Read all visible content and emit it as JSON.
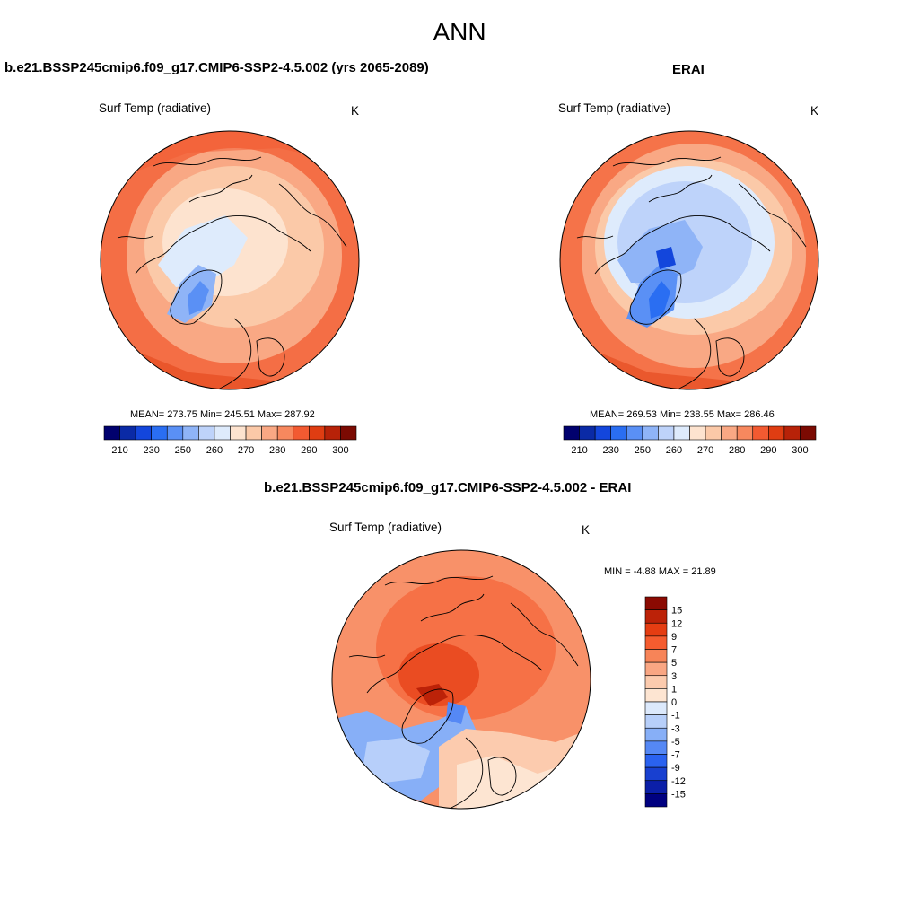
{
  "figure": {
    "title": "ANN"
  },
  "colors": {
    "abs_scale": [
      "#01016e",
      "#0a2aa6",
      "#1346dc",
      "#2a6ef2",
      "#5a90f5",
      "#8fb4f7",
      "#bed3fa",
      "#deebfc",
      "#fde3cf",
      "#fbc9a8",
      "#f9a884",
      "#f7885e",
      "#f25a31",
      "#df3d12",
      "#b72208",
      "#7b0a02"
    ],
    "diff_scale": [
      "#000080",
      "#0b1fa8",
      "#1840d0",
      "#2a62f0",
      "#5588f5",
      "#87aff7",
      "#b7cffa",
      "#dce9fc",
      "#fde5d2",
      "#fccbae",
      "#f9a683",
      "#f78458",
      "#f55c2f",
      "#e53d12",
      "#bc2208",
      "#8b0a02"
    ],
    "coast": "#000000"
  },
  "panels": {
    "model": {
      "title": "b.e21.BSSP245cmip6.f09_g17.CMIP6-SSP2-4.5.002 (yrs 2065-2089)",
      "variable": "Surf Temp (radiative)",
      "units": "K",
      "stats": "MEAN= 273.75  Min= 245.51  Max= 287.92"
    },
    "obs": {
      "title": "ERAI",
      "variable": "Surf Temp (radiative)",
      "units": "K",
      "stats": "MEAN= 269.53  Min= 238.55  Max= 286.46"
    },
    "diff": {
      "title": "b.e21.BSSP245cmip6.f09_g17.CMIP6-SSP2-4.5.002 - ERAI",
      "variable": "Surf Temp (radiative)",
      "units": "K",
      "stats": "MIN =  -4.88 MAX =  21.89"
    }
  },
  "colorbars": {
    "absolute": {
      "orientation": "horizontal",
      "ticks": [
        "210",
        "230",
        "250",
        "260",
        "270",
        "280",
        "290",
        "300"
      ]
    },
    "difference": {
      "orientation": "vertical",
      "ticks": [
        "15",
        "12",
        "9",
        "7",
        "5",
        "3",
        "1",
        "0",
        "-1",
        "-3",
        "-5",
        "-7",
        "-9",
        "-12",
        "-15"
      ]
    }
  }
}
